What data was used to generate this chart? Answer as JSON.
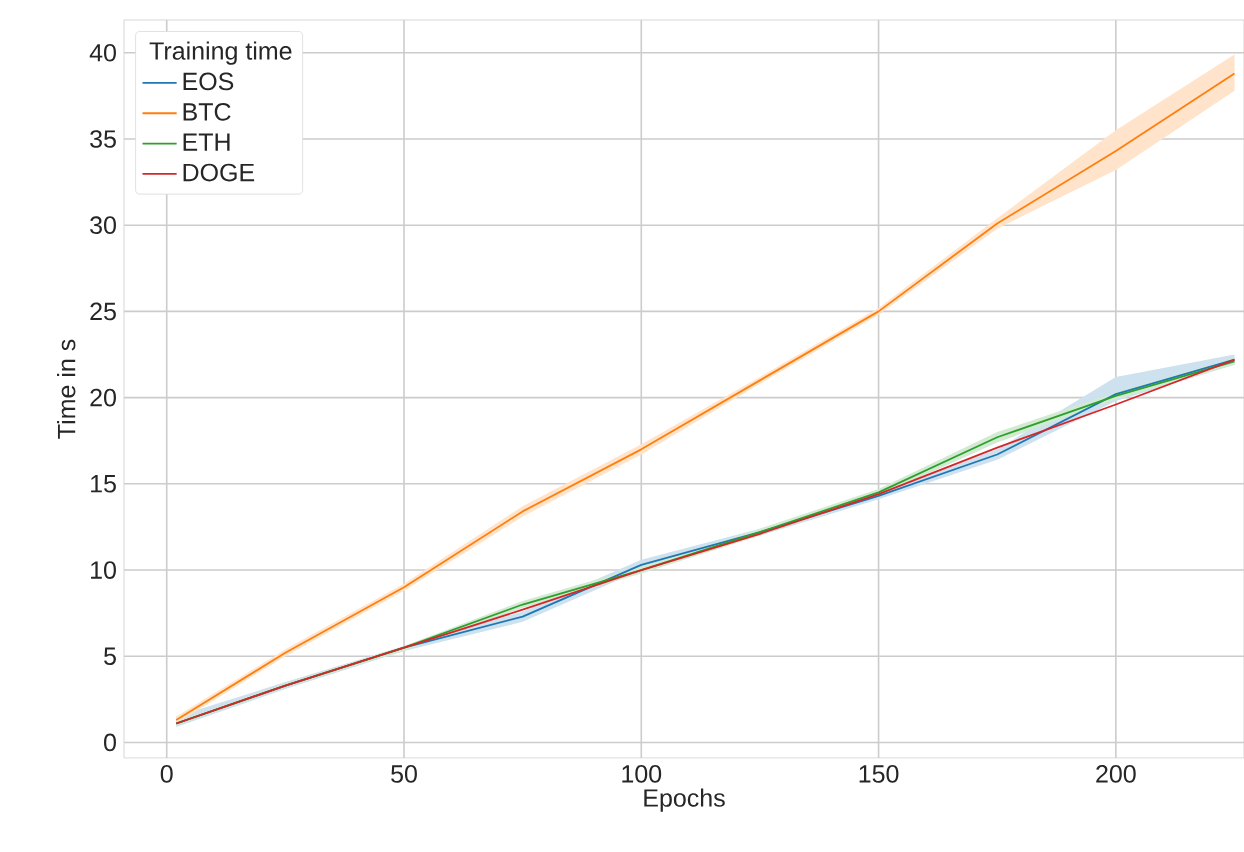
{
  "chart_data": {
    "type": "line",
    "xlabel": "Epochs",
    "ylabel": "Time in s",
    "legend_title": "Training time",
    "x": [
      2,
      25,
      50,
      75,
      100,
      125,
      150,
      175,
      200,
      225
    ],
    "series": [
      {
        "name": "EOS",
        "color": "#1f77b4",
        "values": [
          1.1,
          3.3,
          5.5,
          7.3,
          10.3,
          12.2,
          14.3,
          16.7,
          20.2,
          22.2
        ],
        "lower": [
          0.9,
          3.1,
          5.3,
          7.0,
          10.0,
          12.0,
          14.1,
          16.4,
          19.8,
          21.9
        ],
        "upper": [
          1.5,
          3.5,
          5.6,
          7.6,
          10.6,
          12.4,
          14.5,
          17.0,
          21.2,
          22.5
        ]
      },
      {
        "name": "BTC",
        "color": "#ff7f0e",
        "values": [
          1.3,
          5.2,
          9.0,
          13.4,
          17.0,
          21.0,
          25.0,
          30.1,
          34.3,
          38.8
        ],
        "lower": [
          1.1,
          5.0,
          8.8,
          13.1,
          16.7,
          20.8,
          24.8,
          29.8,
          33.2,
          37.8
        ],
        "upper": [
          1.5,
          5.4,
          9.2,
          13.7,
          17.3,
          21.2,
          25.2,
          30.4,
          35.5,
          39.9
        ]
      },
      {
        "name": "ETH",
        "color": "#2ca02c",
        "values": [
          1.1,
          3.3,
          5.5,
          8.0,
          10.0,
          12.2,
          14.5,
          17.7,
          20.1,
          22.1
        ],
        "lower": [
          1.0,
          3.2,
          5.3,
          7.8,
          9.8,
          12.0,
          14.3,
          17.4,
          19.9,
          21.9
        ],
        "upper": [
          1.2,
          3.4,
          5.6,
          8.2,
          10.2,
          12.4,
          14.7,
          18.0,
          20.3,
          22.3
        ]
      },
      {
        "name": "DOGE",
        "color": "#d62728",
        "values": [
          1.1,
          3.3,
          5.5,
          7.7,
          10.0,
          12.1,
          14.4,
          17.1,
          19.6,
          22.2
        ]
      }
    ],
    "xlim": [
      -9,
      227
    ],
    "ylim": [
      -0.9,
      41.9
    ],
    "xticks": [
      0,
      50,
      100,
      150,
      200
    ],
    "yticks": [
      0,
      5,
      10,
      15,
      20,
      25,
      30,
      35,
      40
    ],
    "grid": true,
    "legend": "top left",
    "marker": "none",
    "line_style": "solid"
  }
}
